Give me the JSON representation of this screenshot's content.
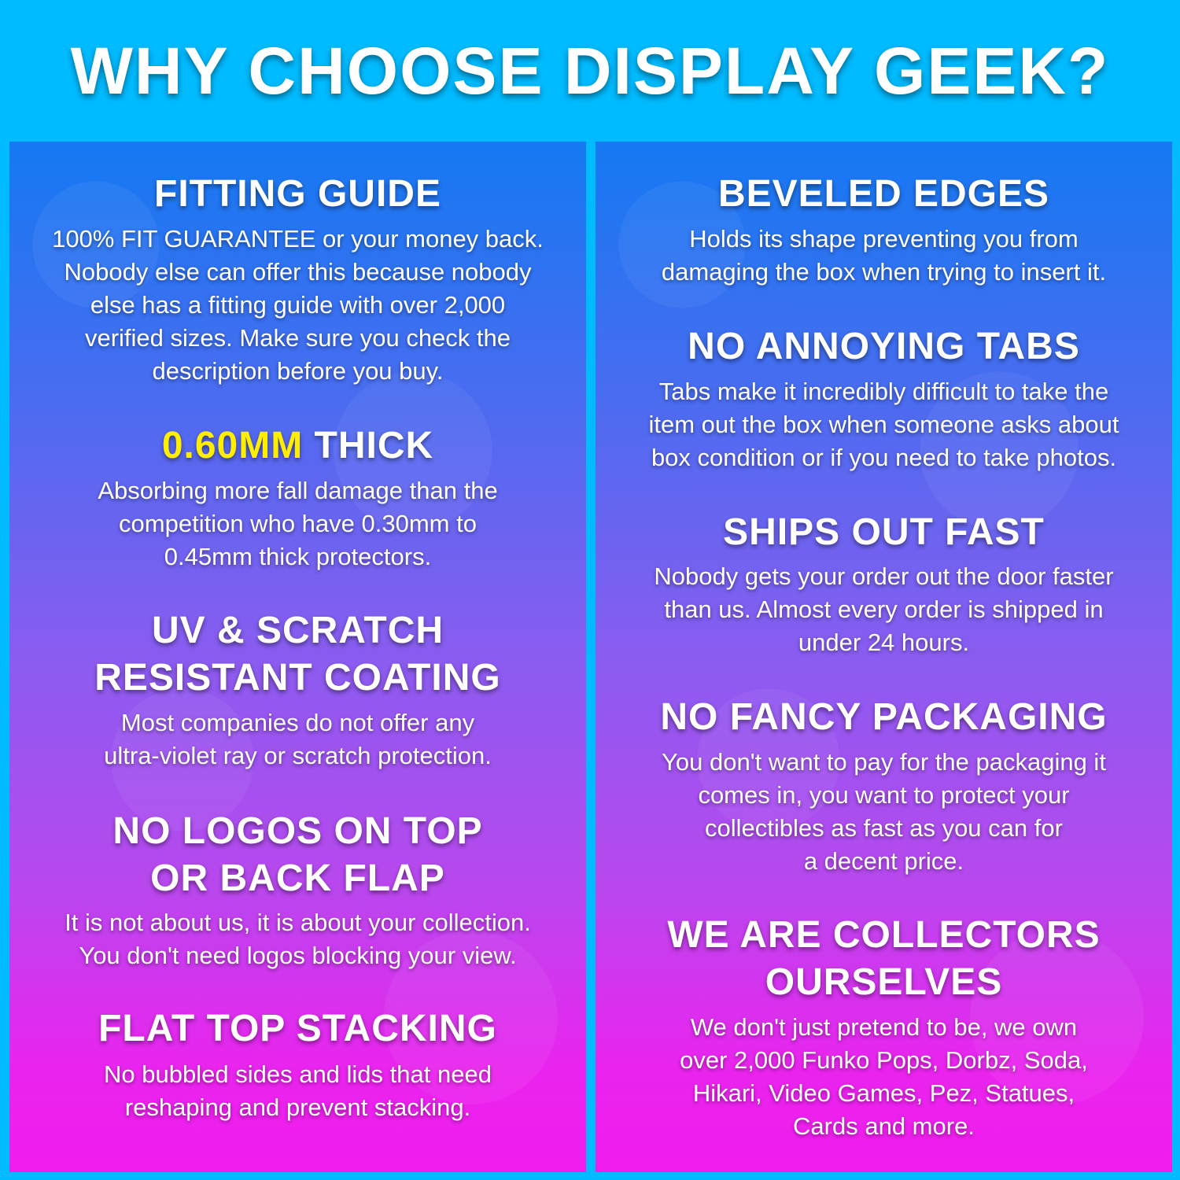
{
  "title": "WHY CHOOSE DISPLAY GEEK?",
  "colors": {
    "background": "#00bbff",
    "panel_top": "#1479f2",
    "panel_bottom": "#f01cee",
    "highlight": "#ffee00",
    "text": "#ffffff"
  },
  "left": [
    {
      "heading": [
        "FITTING GUIDE"
      ],
      "body": [
        "100% FIT GUARANTEE or your money back.",
        "Nobody else can offer this because nobody",
        "else has a fitting guide with over 2,000",
        "verified sizes. Make sure you check the",
        "description before you buy."
      ]
    },
    {
      "heading_highlight": "0.60MM",
      "heading_rest": " THICK",
      "body": [
        "Absorbing more fall damage than the",
        "competition who have 0.30mm to",
        "0.45mm thick protectors."
      ]
    },
    {
      "heading": [
        "UV & SCRATCH",
        "RESISTANT COATING"
      ],
      "body": [
        "Most companies do not offer any",
        "ultra-violet ray or scratch protection."
      ]
    },
    {
      "heading": [
        "NO LOGOS ON TOP",
        "OR BACK FLAP"
      ],
      "body": [
        "It is not about us, it is about your collection.",
        "You don't need logos blocking your view."
      ]
    },
    {
      "heading": [
        "FLAT TOP STACKING"
      ],
      "body": [
        "No bubbled sides and lids that need",
        "reshaping and prevent stacking."
      ]
    }
  ],
  "right": [
    {
      "heading": [
        "BEVELED EDGES"
      ],
      "body": [
        "Holds its shape preventing you from",
        "damaging the box when trying to insert it."
      ]
    },
    {
      "heading": [
        "NO ANNOYING TABS"
      ],
      "body": [
        "Tabs make it incredibly difficult to take the",
        "item out the box when someone asks about",
        "box condition or if you need to take photos."
      ]
    },
    {
      "heading": [
        "SHIPS OUT FAST"
      ],
      "body": [
        "Nobody gets your order out the door faster",
        "than us. Almost every order is shipped in",
        "under 24 hours."
      ]
    },
    {
      "heading": [
        "NO FANCY PACKAGING"
      ],
      "body": [
        "You don't want to pay for the packaging it",
        "comes in, you want to protect your",
        "collectibles as fast as you can for",
        "a decent price."
      ]
    },
    {
      "heading": [
        "WE ARE COLLECTORS",
        "OURSELVES"
      ],
      "body": [
        "We don't just pretend to be, we own",
        "over 2,000 Funko Pops, Dorbz, Soda,",
        "Hikari, Video Games, Pez, Statues,",
        "Cards and more."
      ]
    }
  ]
}
